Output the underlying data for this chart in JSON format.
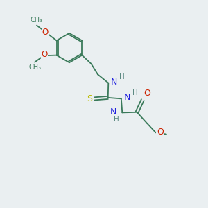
{
  "bg_color": "#eaeff1",
  "bond_color": "#3a7a5a",
  "atom_colors": {
    "N": "#2020dd",
    "O": "#cc2200",
    "S": "#bbbb00",
    "H": "#5a8880",
    "C": "#3a7a5a"
  },
  "font_size": 7.5,
  "figsize": [
    3.0,
    3.0
  ],
  "dpi": 100
}
